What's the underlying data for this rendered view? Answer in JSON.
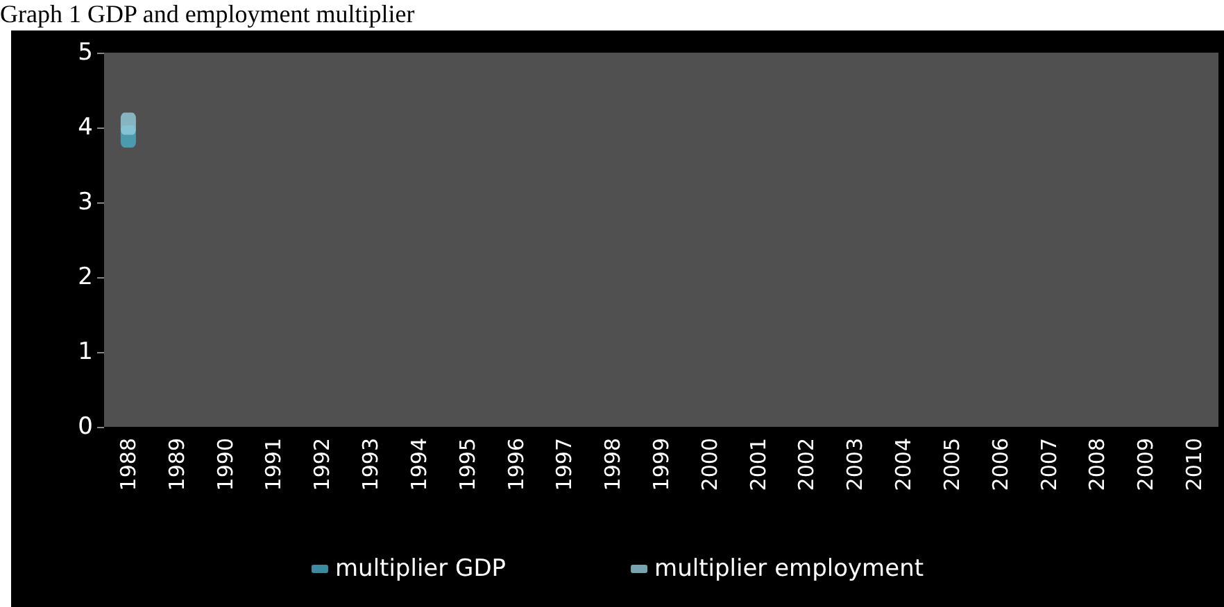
{
  "chart_data": {
    "type": "scatter",
    "title": "Graph 1 GDP and employment multiplier",
    "categories": [
      "1988",
      "1989",
      "1990",
      "1991",
      "1992",
      "1993",
      "1994",
      "1995",
      "1996",
      "1997",
      "1998",
      "1999",
      "2000",
      "2001",
      "2002",
      "2003",
      "2004",
      "2005",
      "2006",
      "2007",
      "2008",
      "2009",
      "2010"
    ],
    "series": [
      {
        "name": "multiplier GDP",
        "color": "#4bacc6",
        "values": [
          3.88,
          null,
          null,
          null,
          null,
          null,
          null,
          null,
          null,
          null,
          null,
          null,
          null,
          null,
          null,
          null,
          null,
          null,
          null,
          null,
          null,
          null,
          null
        ]
      },
      {
        "name": "multiplier employment",
        "color": "#93cddd",
        "values": [
          4.05,
          null,
          null,
          null,
          null,
          null,
          null,
          null,
          null,
          null,
          null,
          null,
          null,
          null,
          null,
          null,
          null,
          null,
          null,
          null,
          null,
          null,
          null
        ]
      }
    ],
    "ylim": [
      0,
      5
    ],
    "yticks": [
      0,
      1,
      2,
      3,
      4,
      5
    ],
    "grid": false,
    "legend": "bottom",
    "marker": "square"
  }
}
